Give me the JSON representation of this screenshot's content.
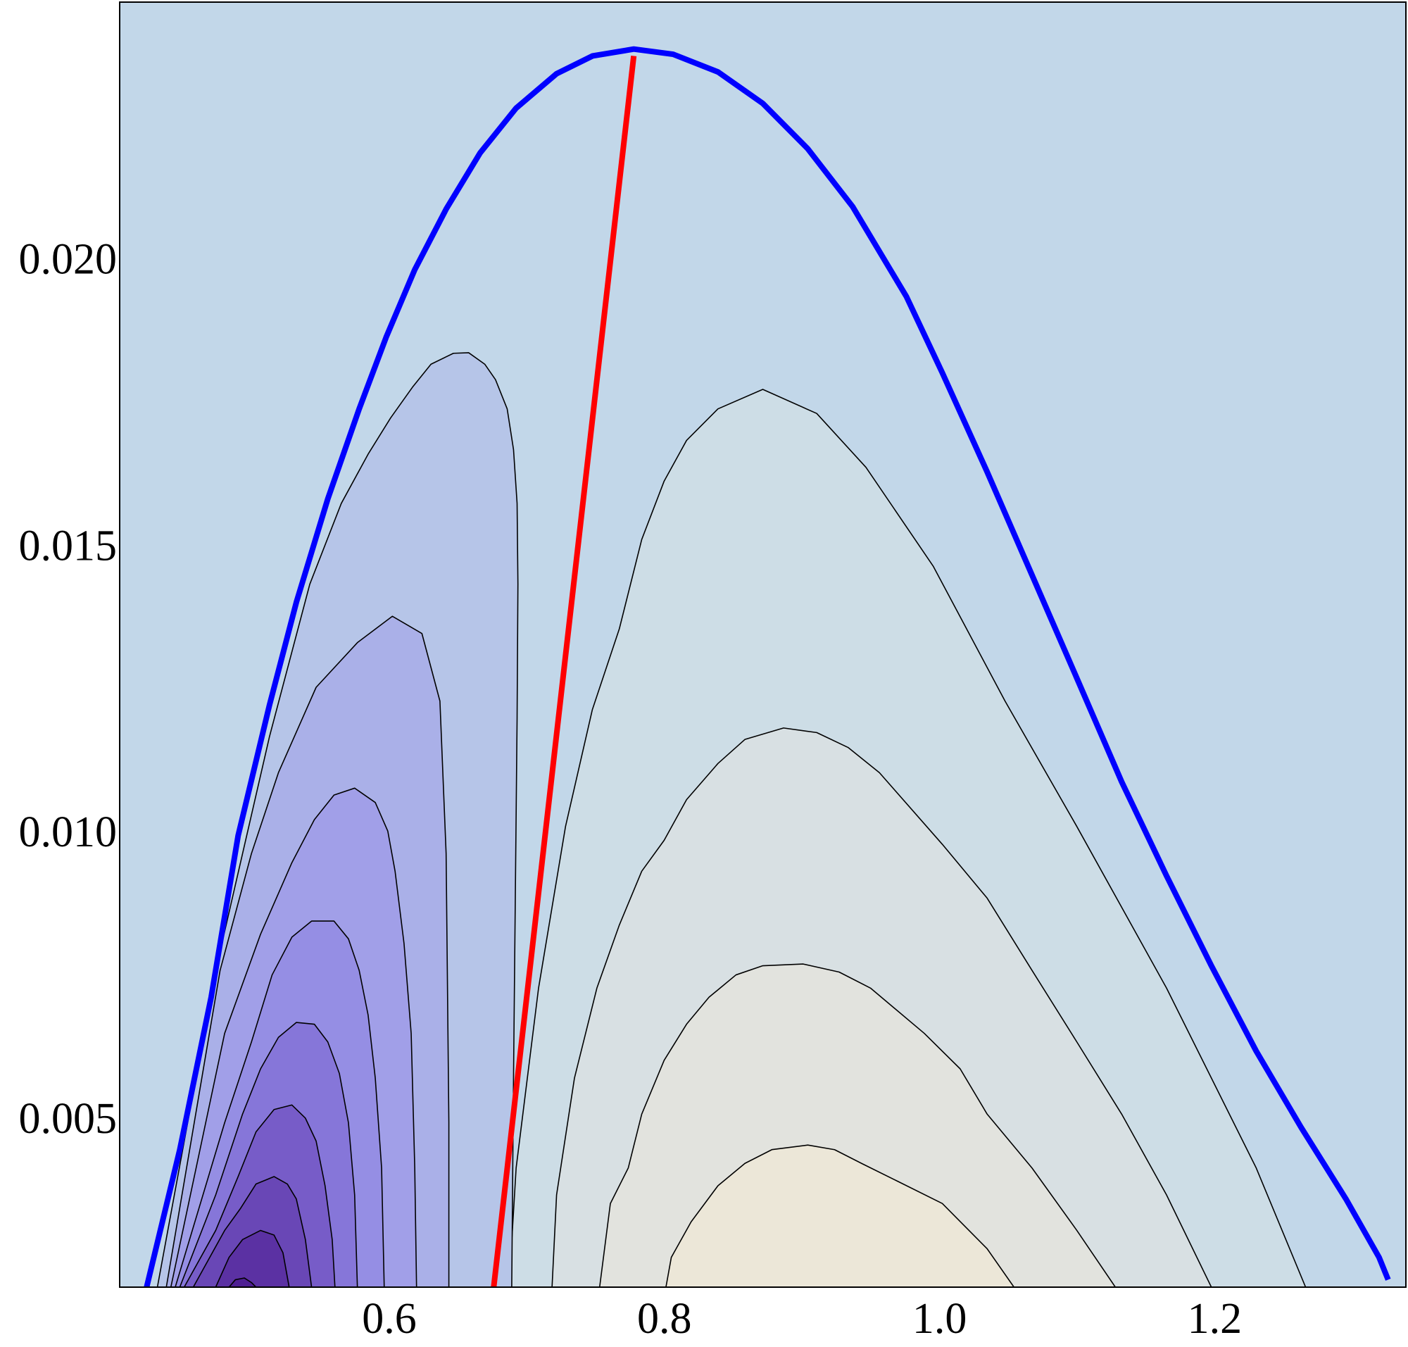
{
  "chart_data": {
    "type": "contour",
    "xlim": [
      0.404,
      1.339
    ],
    "ylim": [
      0.00205,
      0.02448
    ],
    "xticks": [
      0.6,
      0.8,
      {
        "value": 1.0,
        "label": "1.0"
      },
      1.2
    ],
    "yticks": [
      {
        "value": 0.005,
        "label": "0.005"
      },
      {
        "value": 0.01,
        "label": "0.010"
      },
      {
        "value": 0.015,
        "label": "0.015"
      },
      {
        "value": 0.02,
        "label": "0.020"
      }
    ],
    "background": "#c2d7e9",
    "regions": [
      {
        "color": "#cddde6",
        "x": [
          0.687,
          0.6922,
          0.7085,
          0.7281,
          0.7476,
          0.7672,
          0.7835,
          0.7998,
          0.8161,
          0.8389,
          0.8715,
          0.9107,
          0.9465,
          0.9955,
          1.0476,
          1.0998,
          1.165,
          1.2302,
          1.2661
        ],
        "y": [
          0.00205,
          0.00413,
          0.00727,
          0.01009,
          0.01213,
          0.01354,
          0.0151,
          0.01612,
          0.01683,
          0.01738,
          0.01772,
          0.0173,
          0.01636,
          0.01463,
          0.01228,
          0.01009,
          0.00727,
          0.00413,
          0.00205
        ]
      },
      {
        "color": "#d8e0e3",
        "x": [
          0.7183,
          0.7216,
          0.7346,
          0.7509,
          0.7672,
          0.7835,
          0.7998,
          0.8161,
          0.8389,
          0.8585,
          0.8866,
          0.9107,
          0.9335,
          0.9563,
          1.002,
          1.0346,
          1.0672,
          1.0998,
          1.1324,
          1.165,
          1.1976
        ],
        "y": [
          0.00205,
          0.00366,
          0.0057,
          0.00727,
          0.00837,
          0.00931,
          0.00985,
          0.01056,
          0.01119,
          0.01161,
          0.01181,
          0.01173,
          0.01147,
          0.01103,
          0.00978,
          0.00884,
          0.00758,
          0.00633,
          0.00507,
          0.00366,
          0.00205
        ]
      },
      {
        "color": "#e2e3de",
        "x": [
          0.7529,
          0.7607,
          0.7737,
          0.7835,
          0.7998,
          0.8161,
          0.8324,
          0.852,
          0.8715,
          0.9009,
          0.927,
          0.9498,
          0.9889,
          1.015,
          1.0346,
          1.0672,
          1.0998,
          1.1278
        ],
        "y": [
          0.00205,
          0.00351,
          0.00413,
          0.00507,
          0.00601,
          0.00664,
          0.00711,
          0.0075,
          0.00766,
          0.00769,
          0.00755,
          0.00727,
          0.00648,
          0.00586,
          0.00507,
          0.00413,
          0.00304,
          0.00205
        ]
      },
      {
        "color": "#ece7d8",
        "x": [
          0.8011,
          0.805,
          0.8194,
          0.8389,
          0.8585,
          0.8781,
          0.9042,
          0.9237,
          0.9433,
          0.9694,
          1.002,
          1.0346,
          1.0541
        ],
        "y": [
          0.00205,
          0.00257,
          0.00319,
          0.00382,
          0.00421,
          0.00445,
          0.00453,
          0.00445,
          0.00421,
          0.0039,
          0.00351,
          0.00272,
          0.00205
        ]
      },
      {
        "color": "#b6c5e8",
        "x": [
          0.4314,
          0.4738,
          0.5129,
          0.5422,
          0.5651,
          0.5846,
          0.6009,
          0.6172,
          0.6303,
          0.6466,
          0.6577,
          0.6694,
          0.6772,
          0.6857,
          0.6903,
          0.6929,
          0.6935,
          0.6929,
          0.6916,
          0.6903,
          0.689
        ],
        "y": [
          0.00205,
          0.00758,
          0.01166,
          0.01432,
          0.01573,
          0.01659,
          0.01722,
          0.01777,
          0.01816,
          0.01835,
          0.01836,
          0.01816,
          0.01789,
          0.01738,
          0.01667,
          0.01573,
          0.01432,
          0.01197,
          0.00884,
          0.0057,
          0.00205
        ]
      },
      {
        "color": "#aab0e8",
        "x": [
          0.4379,
          0.477,
          0.4998,
          0.5194,
          0.5468,
          0.5768,
          0.6022,
          0.6237,
          0.6368,
          0.6413,
          0.6433,
          0.6433
        ],
        "y": [
          0.00205,
          0.00758,
          0.00962,
          0.01103,
          0.01252,
          0.0133,
          0.01376,
          0.01346,
          0.01228,
          0.00962,
          0.00492,
          0.00205
        ]
      },
      {
        "color": "#a19fe8",
        "x": [
          0.4412,
          0.4803,
          0.5064,
          0.5292,
          0.5455,
          0.5598,
          0.5748,
          0.5898,
          0.5989,
          0.6042,
          0.6107,
          0.6159,
          0.6185,
          0.6198
        ],
        "y": [
          0.00205,
          0.00648,
          0.00821,
          0.00946,
          0.01021,
          0.01064,
          0.01076,
          0.01051,
          0.01001,
          0.00931,
          0.00805,
          0.00648,
          0.00413,
          0.00205
        ]
      },
      {
        "color": "#958ee4",
        "x": [
          0.4444,
          0.4803,
          0.4998,
          0.5148,
          0.5292,
          0.5435,
          0.5598,
          0.5703,
          0.5781,
          0.5846,
          0.5898,
          0.5944,
          0.5963
        ],
        "y": [
          0.00205,
          0.00492,
          0.00633,
          0.0075,
          0.00816,
          0.00844,
          0.00844,
          0.00813,
          0.00758,
          0.0068,
          0.0057,
          0.00413,
          0.00205
        ]
      },
      {
        "color": "#8676d9",
        "x": [
          0.4477,
          0.4738,
          0.4933,
          0.5064,
          0.5194,
          0.5324,
          0.5455,
          0.5553,
          0.5637,
          0.5703,
          0.5748,
          0.5768
        ],
        "y": [
          0.00205,
          0.00366,
          0.00507,
          0.00586,
          0.00641,
          0.00667,
          0.00664,
          0.00633,
          0.00578,
          0.00492,
          0.00366,
          0.00205
        ]
      },
      {
        "color": "#775cc8",
        "x": [
          0.4509,
          0.4738,
          0.4901,
          0.5031,
          0.5162,
          0.5292,
          0.539,
          0.5468,
          0.5533,
          0.5585,
          0.5605
        ],
        "y": [
          0.00205,
          0.00304,
          0.00398,
          0.00476,
          0.00515,
          0.00523,
          0.005,
          0.0046,
          0.00382,
          0.00288,
          0.00205
        ]
      },
      {
        "color": "#6947b6",
        "x": [
          0.4575,
          0.4803,
          0.492,
          0.5031,
          0.5162,
          0.5259,
          0.5324,
          0.539,
          0.5435
        ],
        "y": [
          0.00205,
          0.00304,
          0.00343,
          0.00385,
          0.00398,
          0.00385,
          0.00359,
          0.00288,
          0.00205
        ]
      },
      {
        "color": "#5b31a3",
        "x": [
          0.4738,
          0.4835,
          0.4933,
          0.5064,
          0.5162,
          0.5227,
          0.5272
        ],
        "y": [
          0.00205,
          0.00257,
          0.00288,
          0.00304,
          0.00296,
          0.00265,
          0.00205
        ]
      },
      {
        "color": "#4e1f92",
        "x": [
          0.4835,
          0.4881,
          0.4946,
          0.4998,
          0.5031
        ],
        "y": [
          0.00205,
          0.00218,
          0.00221,
          0.00213,
          0.00205
        ]
      }
    ],
    "lines": [
      {
        "color": "#ff0000",
        "x": [
          0.6759,
          0.7777
        ],
        "y": [
          0.00205,
          0.02354
        ]
      },
      {
        "color": "#0000ff",
        "x": [
          0.4236,
          0.4477,
          0.4705,
          0.4901,
          0.5129,
          0.5325,
          0.5553,
          0.5781,
          0.5977,
          0.6185,
          0.6414,
          0.6661,
          0.6922,
          0.7216,
          0.7477,
          0.7777,
          0.8063,
          0.839,
          0.8716,
          0.9042,
          0.9368,
          0.9759,
          1.002,
          1.0346,
          1.0672,
          1.0998,
          1.1324,
          1.165,
          1.1976,
          1.2302,
          1.2628,
          1.2954,
          1.3195,
          1.3261
        ],
        "y": [
          0.00205,
          0.00445,
          0.00711,
          0.00993,
          0.01221,
          0.01401,
          0.01581,
          0.01738,
          0.01863,
          0.01981,
          0.02087,
          0.02185,
          0.02263,
          0.02323,
          0.02354,
          0.02366,
          0.02357,
          0.02326,
          0.02271,
          0.02192,
          0.02091,
          0.01934,
          0.01801,
          0.01628,
          0.01448,
          0.01268,
          0.01087,
          0.00923,
          0.00766,
          0.00617,
          0.00484,
          0.00359,
          0.00257,
          0.00218
        ]
      }
    ]
  }
}
